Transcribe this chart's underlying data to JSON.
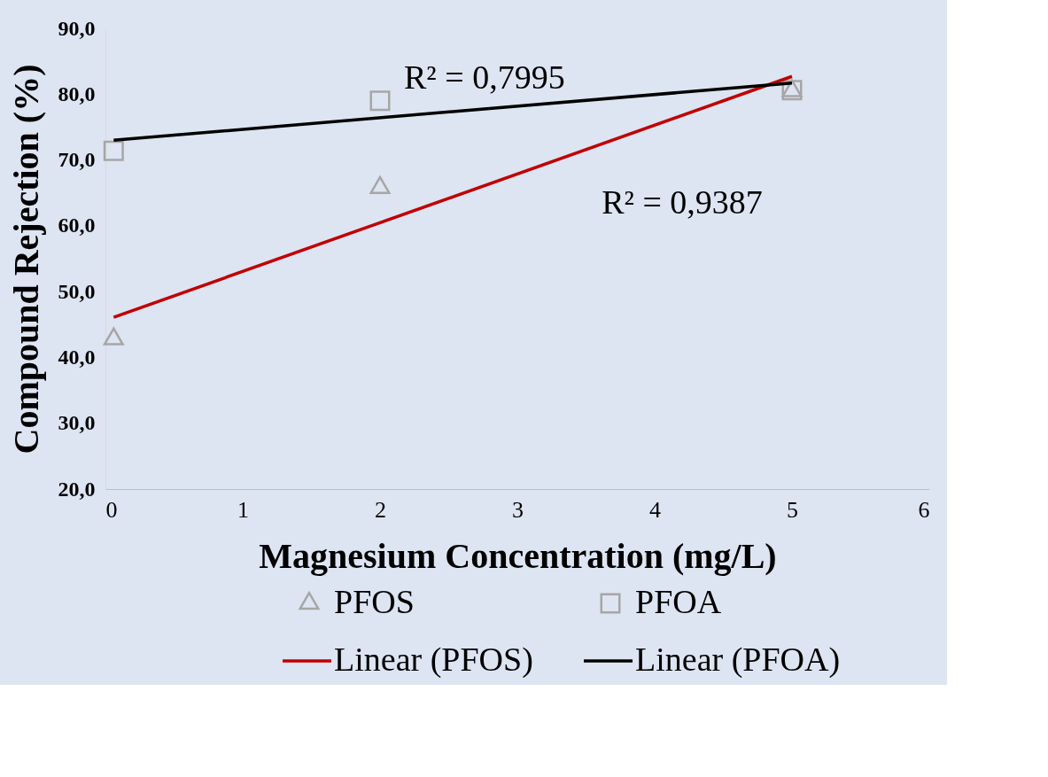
{
  "chart_data": {
    "type": "scatter",
    "xlabel": "Magnesium Concentration (mg/L)",
    "ylabel": "Compound Rejection (%)",
    "xlim": [
      0,
      6
    ],
    "xticks": [
      0,
      1,
      2,
      3,
      4,
      5,
      6
    ],
    "ylim": [
      20,
      90
    ],
    "yticks": [
      {
        "value": 20,
        "label": "20,0"
      },
      {
        "value": 30,
        "label": "30,0"
      },
      {
        "value": 40,
        "label": "40,0"
      },
      {
        "value": 50,
        "label": "50,0"
      },
      {
        "value": 60,
        "label": "60,0"
      },
      {
        "value": 70,
        "label": "70,0"
      },
      {
        "value": 80,
        "label": "80,0"
      },
      {
        "value": 90,
        "label": "90,0"
      }
    ],
    "grid": false,
    "legend": "bottom",
    "series": [
      {
        "name": "PFOS",
        "marker": "triangle",
        "color": "#a6a6a6",
        "x": [
          0.06,
          2,
          5
        ],
        "values": [
          42.8,
          65.8,
          80.5
        ]
      },
      {
        "name": "PFOA",
        "marker": "square",
        "color": "#a6a6a6",
        "x": [
          0.06,
          2,
          5
        ],
        "values": [
          71.4,
          79.0,
          80.6
        ]
      },
      {
        "name": "Linear (PFOS)",
        "type": "line",
        "color": "#c00000",
        "x": [
          0.06,
          5
        ],
        "values": [
          46.1,
          82.7
        ]
      },
      {
        "name": "Linear (PFOA)",
        "type": "line",
        "color": "#000000",
        "x": [
          0.06,
          5
        ],
        "values": [
          73.0,
          81.7
        ]
      }
    ],
    "annotations": [
      "R² = 0,7995",
      "R² = 0,9387"
    ]
  }
}
